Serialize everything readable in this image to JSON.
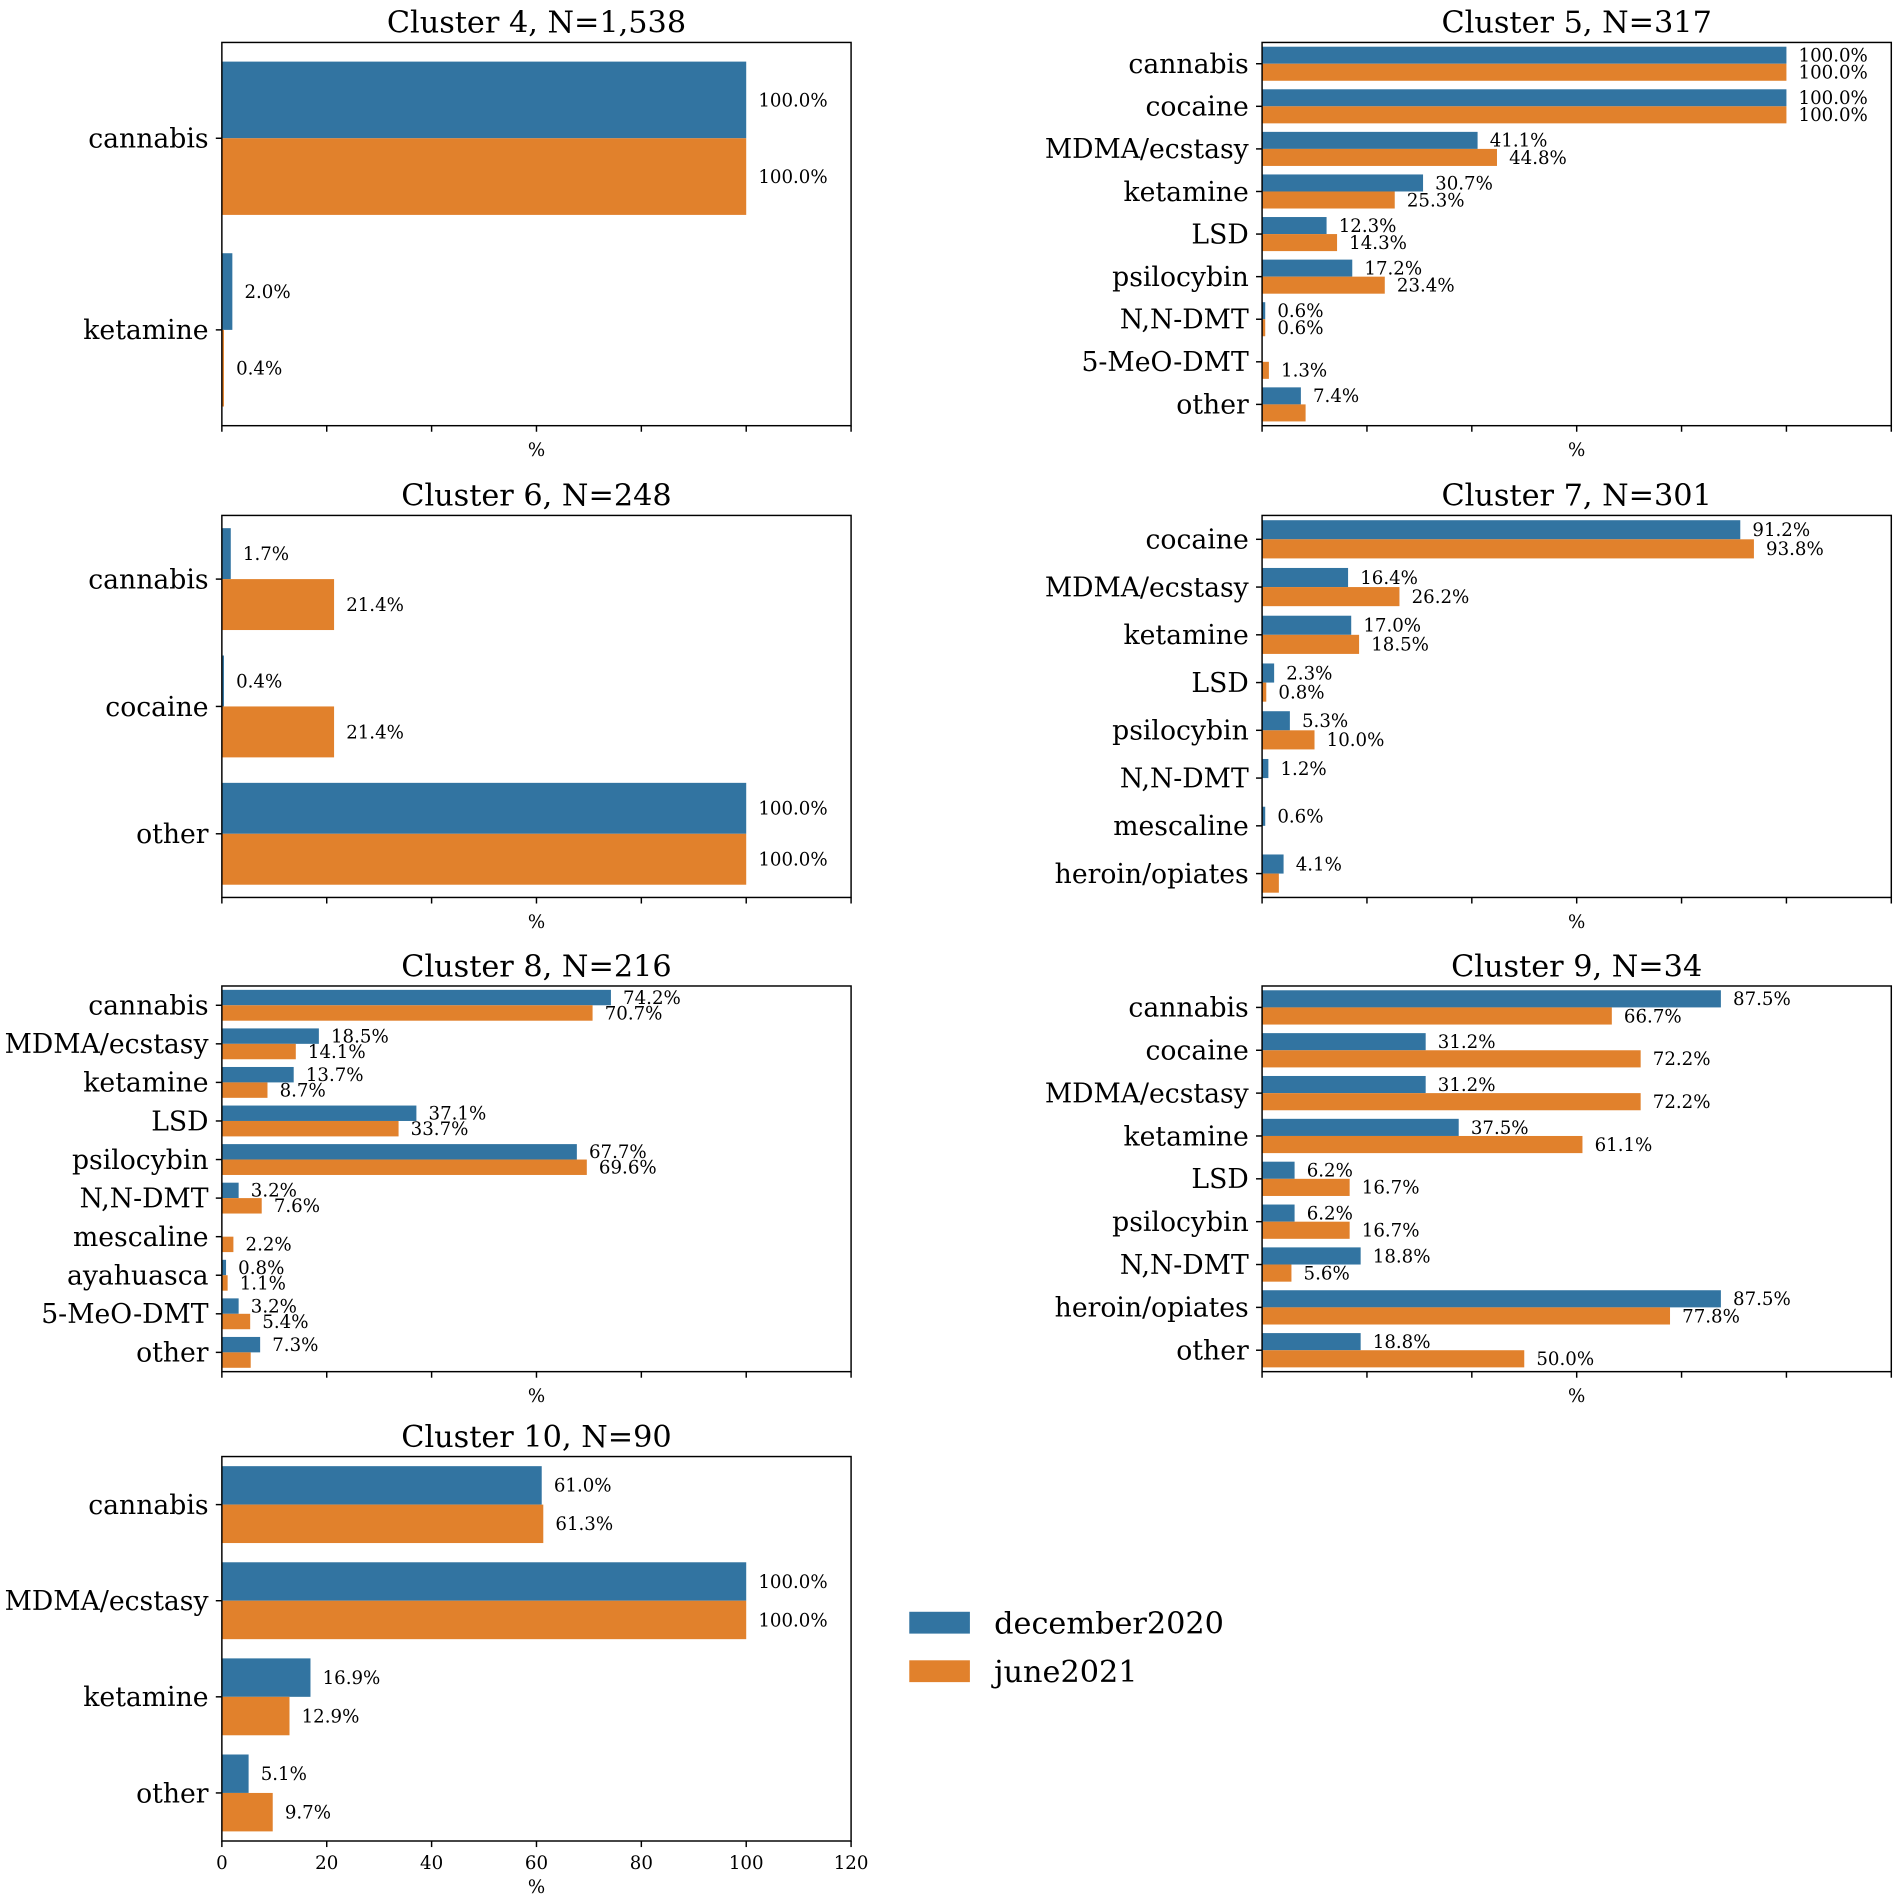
{
  "legend": {
    "entries": [
      {
        "name": "december2020",
        "color": "#3274a1"
      },
      {
        "name": "june2021",
        "color": "#e1812c"
      }
    ]
  },
  "chart_data": [
    {
      "type": "bar",
      "title": "Cluster 4, N=1,538",
      "xlabel": "%",
      "xlim": [
        0,
        120
      ],
      "xticks": [
        0,
        20,
        40,
        60,
        80,
        100,
        120
      ],
      "grid": false,
      "categories": [
        "cannabis",
        "ketamine"
      ],
      "series": [
        {
          "name": "december2020",
          "values": [
            100.0,
            2.0
          ],
          "labels": [
            "100.0%",
            "2.0%"
          ]
        },
        {
          "name": "june2021",
          "values": [
            100.0,
            0.4
          ],
          "labels": [
            "100.0%",
            "0.4%"
          ]
        }
      ]
    },
    {
      "type": "bar",
      "title": "Cluster 5, N=317",
      "xlabel": "%",
      "xlim": [
        0,
        120
      ],
      "xticks": [
        0,
        20,
        40,
        60,
        80,
        100,
        120
      ],
      "grid": false,
      "categories": [
        "cannabis",
        "cocaine",
        "MDMA/ecstasy",
        "ketamine",
        "LSD",
        "psilocybin",
        "N,N-DMT",
        "5-MeO-DMT",
        "other"
      ],
      "series": [
        {
          "name": "december2020",
          "values": [
            100.0,
            100.0,
            41.1,
            30.7,
            12.3,
            17.2,
            0.6,
            null,
            7.4
          ],
          "labels": [
            "100.0%",
            "100.0%",
            "41.1%",
            "30.7%",
            "12.3%",
            "17.2%",
            "0.6%",
            null,
            "7.4%"
          ]
        },
        {
          "name": "june2021",
          "values": [
            100.0,
            100.0,
            44.8,
            25.3,
            14.3,
            23.4,
            0.6,
            1.3,
            8.3
          ],
          "labels": [
            "100.0%",
            "100.0%",
            "44.8%",
            "25.3%",
            "14.3%",
            "23.4%",
            "0.6%",
            "1.3%",
            null
          ]
        }
      ]
    },
    {
      "type": "bar",
      "title": "Cluster 6, N=248",
      "xlabel": "%",
      "xlim": [
        0,
        120
      ],
      "xticks": [
        0,
        20,
        40,
        60,
        80,
        100,
        120
      ],
      "grid": false,
      "categories": [
        "cannabis",
        "cocaine",
        "other"
      ],
      "series": [
        {
          "name": "december2020",
          "values": [
            1.7,
            0.4,
            100.0
          ],
          "labels": [
            "1.7%",
            "0.4%",
            "100.0%"
          ]
        },
        {
          "name": "june2021",
          "values": [
            21.4,
            21.4,
            100.0
          ],
          "labels": [
            "21.4%",
            "21.4%",
            "100.0%"
          ]
        }
      ]
    },
    {
      "type": "bar",
      "title": "Cluster 7, N=301",
      "xlabel": "%",
      "xlim": [
        0,
        120
      ],
      "xticks": [
        0,
        20,
        40,
        60,
        80,
        100,
        120
      ],
      "grid": false,
      "categories": [
        "cocaine",
        "MDMA/ecstasy",
        "ketamine",
        "LSD",
        "psilocybin",
        "N,N-DMT",
        "mescaline",
        "heroin/opiates"
      ],
      "series": [
        {
          "name": "december2020",
          "values": [
            91.2,
            16.4,
            17.0,
            2.3,
            5.3,
            1.2,
            0.6,
            4.1
          ],
          "labels": [
            "91.2%",
            "16.4%",
            "17.0%",
            "2.3%",
            "5.3%",
            "1.2%",
            "0.6%",
            "4.1%"
          ]
        },
        {
          "name": "june2021",
          "values": [
            93.8,
            26.2,
            18.5,
            0.8,
            10.0,
            null,
            null,
            3.2
          ],
          "labels": [
            "93.8%",
            "26.2%",
            "18.5%",
            "0.8%",
            "10.0%",
            null,
            null,
            null
          ]
        }
      ]
    },
    {
      "type": "bar",
      "title": "Cluster 8, N=216",
      "xlabel": "%",
      "xlim": [
        0,
        120
      ],
      "xticks": [
        0,
        20,
        40,
        60,
        80,
        100,
        120
      ],
      "grid": false,
      "categories": [
        "cannabis",
        "MDMA/ecstasy",
        "ketamine",
        "LSD",
        "psilocybin",
        "N,N-DMT",
        "mescaline",
        "ayahuasca",
        "5-MeO-DMT",
        "other"
      ],
      "series": [
        {
          "name": "december2020",
          "values": [
            74.2,
            18.5,
            13.7,
            37.1,
            67.7,
            3.2,
            null,
            0.8,
            3.2,
            7.3
          ],
          "labels": [
            "74.2%",
            "18.5%",
            "13.7%",
            "37.1%",
            "67.7%",
            "3.2%",
            null,
            "0.8%",
            "3.2%",
            "7.3%"
          ]
        },
        {
          "name": "june2021",
          "values": [
            70.7,
            14.1,
            8.7,
            33.7,
            69.6,
            7.6,
            2.2,
            1.1,
            5.4,
            5.5
          ],
          "labels": [
            "70.7%",
            "14.1%",
            "8.7%",
            "33.7%",
            "69.6%",
            "7.6%",
            "2.2%",
            "1.1%",
            "5.4%",
            null
          ]
        }
      ]
    },
    {
      "type": "bar",
      "title": "Cluster 9, N=34",
      "xlabel": "%",
      "xlim": [
        0,
        120
      ],
      "xticks": [
        0,
        20,
        40,
        60,
        80,
        100,
        120
      ],
      "grid": false,
      "categories": [
        "cannabis",
        "cocaine",
        "MDMA/ecstasy",
        "ketamine",
        "LSD",
        "psilocybin",
        "N,N-DMT",
        "heroin/opiates",
        "other"
      ],
      "series": [
        {
          "name": "december2020",
          "values": [
            87.5,
            31.2,
            31.2,
            37.5,
            6.2,
            6.2,
            18.8,
            87.5,
            18.8
          ],
          "labels": [
            "87.5%",
            "31.2%",
            "31.2%",
            "37.5%",
            "6.2%",
            "6.2%",
            "18.8%",
            "87.5%",
            "18.8%"
          ]
        },
        {
          "name": "june2021",
          "values": [
            66.7,
            72.2,
            72.2,
            61.1,
            16.7,
            16.7,
            5.6,
            77.8,
            50.0
          ],
          "labels": [
            "66.7%",
            "72.2%",
            "72.2%",
            "61.1%",
            "16.7%",
            "16.7%",
            "5.6%",
            "77.8%",
            "50.0%"
          ]
        }
      ]
    },
    {
      "type": "bar",
      "title": "Cluster 10, N=90",
      "xlabel": "%",
      "xlim": [
        0,
        120
      ],
      "xticks": [
        0,
        20,
        40,
        60,
        80,
        100,
        120
      ],
      "xtick_labels": [
        "0",
        "20",
        "40",
        "60",
        "80",
        "100",
        "120"
      ],
      "grid": false,
      "categories": [
        "cannabis",
        "MDMA/ecstasy",
        "ketamine",
        "other"
      ],
      "series": [
        {
          "name": "december2020",
          "values": [
            61.0,
            100.0,
            16.9,
            5.1
          ],
          "labels": [
            "61.0%",
            "100.0%",
            "16.9%",
            "5.1%"
          ]
        },
        {
          "name": "june2021",
          "values": [
            61.3,
            100.0,
            12.9,
            9.7
          ],
          "labels": [
            "61.3%",
            "100.0%",
            "12.9%",
            "9.7%"
          ]
        }
      ]
    }
  ]
}
